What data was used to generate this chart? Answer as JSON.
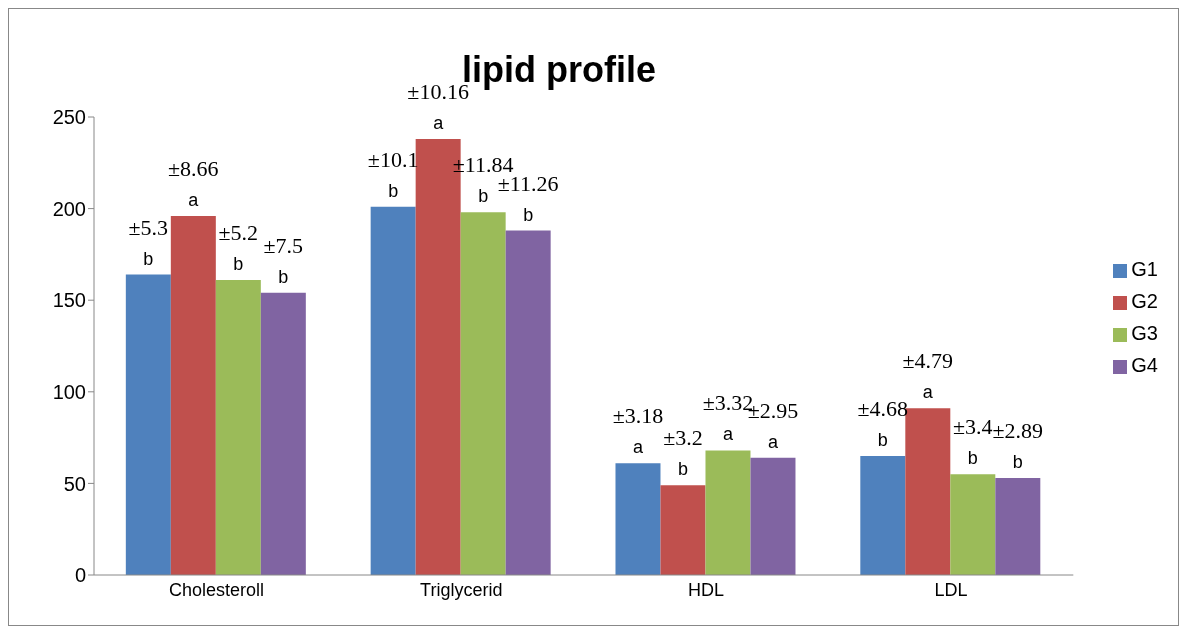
{
  "chart_data": {
    "type": "bar",
    "title": "lipid profile",
    "categories": [
      "Cholesteroll",
      "Triglycerid",
      "HDL",
      "LDL"
    ],
    "series": [
      {
        "name": "G1",
        "color": "#4f81bd",
        "values": [
          164,
          201,
          61,
          65
        ]
      },
      {
        "name": "G2",
        "color": "#c0504d",
        "values": [
          196,
          238,
          49,
          91
        ]
      },
      {
        "name": "G3",
        "color": "#9bbb59",
        "values": [
          161,
          198,
          68,
          55
        ]
      },
      {
        "name": "G4",
        "color": "#8064a2",
        "values": [
          154,
          188,
          64,
          53
        ]
      }
    ],
    "annotations": [
      {
        "text": "±5.3\nb",
        "x": "Cholesteroll",
        "y": 164
      },
      {
        "text": "±10.1\nb",
        "x": "Triglycerid",
        "y": 201
      },
      {
        "text": "±3.18\na",
        "x": "HDL",
        "y": 61
      },
      {
        "text": "±4.68\nb",
        "x": "LDL",
        "y": 65
      },
      {
        "text": "±8.66\na",
        "x": "Cholesteroll",
        "y": 196
      },
      {
        "text": "±10.16\na",
        "x": "Triglycerid",
        "y": 238
      },
      {
        "text": "±3.2\nb",
        "x": "HDL",
        "y": 49
      },
      {
        "text": "±4.79\na",
        "x": "LDL",
        "y": 91
      },
      {
        "text": "±5.2\nb",
        "x": "Cholesteroll",
        "y": 161
      },
      {
        "text": "±11.84\nb",
        "x": "Triglycerid",
        "y": 198
      },
      {
        "text": "±3.32\na",
        "x": "HDL",
        "y": 68
      },
      {
        "text": "±3.4\nb",
        "x": "LDL",
        "y": 55
      },
      {
        "text": "±7.5\nb",
        "x": "Cholesteroll",
        "y": 154
      },
      {
        "text": "±11.26\nb",
        "x": "Triglycerid",
        "y": 188
      },
      {
        "text": "±2.95\na",
        "x": "HDL",
        "y": 64
      },
      {
        "text": "±2.89\nb",
        "x": "LDL",
        "y": 53
      }
    ],
    "ylim": [
      0,
      250
    ],
    "yticks": [
      0,
      50,
      100,
      150,
      200,
      250
    ],
    "grid": false,
    "legend": "right"
  }
}
